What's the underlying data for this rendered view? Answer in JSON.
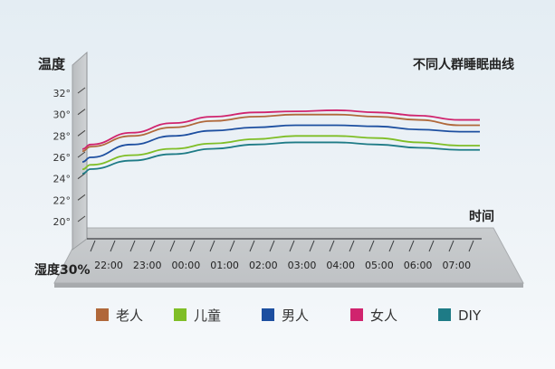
{
  "chart_data": {
    "type": "line",
    "title": "不同人群睡眠曲线",
    "ylabel": "温度",
    "xlabel": "时间",
    "humidity_label": "湿度30%",
    "ylim": [
      19,
      34
    ],
    "yticks": [
      20,
      22,
      24,
      26,
      28,
      30,
      32
    ],
    "ytick_labels": [
      "20°",
      "22°",
      "24°",
      "26°",
      "28°",
      "30°",
      "32°"
    ],
    "categories": [
      "22:00",
      "23:00",
      "00:00",
      "01:00",
      "02:00",
      "03:00",
      "04:00",
      "05:00",
      "06:00",
      "07:00"
    ],
    "series": [
      {
        "name": "老人",
        "color": "#b0683a",
        "values": [
          27.0,
          28.0,
          28.8,
          29.4,
          29.8,
          30.0,
          30.0,
          29.8,
          29.5,
          29.0
        ]
      },
      {
        "name": "儿童",
        "color": "#7fbe26",
        "values": [
          25.3,
          26.2,
          26.8,
          27.3,
          27.7,
          28.0,
          28.0,
          27.8,
          27.4,
          27.1
        ]
      },
      {
        "name": "男人",
        "color": "#1d4fa0",
        "values": [
          26.0,
          27.2,
          28.0,
          28.5,
          28.8,
          29.0,
          29.0,
          28.9,
          28.6,
          28.4
        ]
      },
      {
        "name": "女人",
        "color": "#d0246e",
        "values": [
          27.2,
          28.3,
          29.2,
          29.8,
          30.2,
          30.3,
          30.4,
          30.2,
          29.9,
          29.5
        ]
      },
      {
        "name": "DIY",
        "color": "#1e7b86",
        "values": [
          24.9,
          25.7,
          26.3,
          26.8,
          27.2,
          27.4,
          27.4,
          27.2,
          26.9,
          26.7
        ]
      }
    ],
    "grid": false,
    "legend_position": "bottom"
  }
}
